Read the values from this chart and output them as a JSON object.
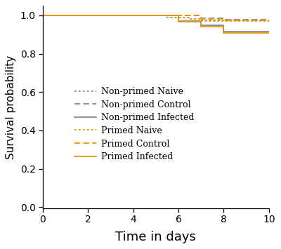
{
  "title": "",
  "xlabel": "Time in days",
  "ylabel": "Survival probability",
  "xlim": [
    0,
    10
  ],
  "ylim": [
    -0.005,
    1.05
  ],
  "xticks": [
    0,
    2,
    4,
    6,
    8,
    10
  ],
  "yticks": [
    0.0,
    0.2,
    0.4,
    0.6,
    0.8,
    1.0
  ],
  "gray_color": "#898989",
  "orange_color": "#E8960A",
  "series": [
    {
      "name": "Non-primed Naive",
      "color": "#898989",
      "linestyle": "dotted",
      "linewidth": 1.3,
      "x": [
        0,
        5.5,
        5.5,
        6.5,
        6.5,
        7.0,
        7.0,
        10
      ],
      "y": [
        1.0,
        1.0,
        0.99,
        0.99,
        0.982,
        0.982,
        0.974,
        0.974
      ]
    },
    {
      "name": "Non-primed Control",
      "color": "#898989",
      "linestyle": "dashed",
      "linewidth": 1.3,
      "x": [
        0,
        7.0,
        7.0,
        8.0,
        8.0,
        10
      ],
      "y": [
        1.0,
        1.0,
        0.986,
        0.986,
        0.978,
        0.978
      ]
    },
    {
      "name": "Non-primed Infected",
      "color": "#898989",
      "linestyle": "solid",
      "linewidth": 1.3,
      "x": [
        0,
        6.0,
        6.0,
        7.0,
        7.0,
        8.0,
        8.0,
        10
      ],
      "y": [
        1.0,
        1.0,
        0.97,
        0.97,
        0.95,
        0.95,
        0.916,
        0.916
      ]
    },
    {
      "name": "Primed Naive",
      "color": "#E8960A",
      "linestyle": "dotted",
      "linewidth": 1.3,
      "x": [
        0,
        5.5,
        5.5,
        6.5,
        6.5,
        7.0,
        7.0,
        10
      ],
      "y": [
        1.0,
        1.0,
        0.99,
        0.99,
        0.98,
        0.98,
        0.972,
        0.972
      ]
    },
    {
      "name": "Primed Control",
      "color": "#E8960A",
      "linestyle": "dashed",
      "linewidth": 1.3,
      "x": [
        0,
        7.0,
        7.0,
        8.0,
        8.0,
        10
      ],
      "y": [
        1.0,
        1.0,
        0.982,
        0.982,
        0.974,
        0.974
      ]
    },
    {
      "name": "Primed Infected",
      "color": "#E8960A",
      "linestyle": "solid",
      "linewidth": 1.3,
      "x": [
        0,
        6.0,
        6.0,
        7.0,
        7.0,
        8.0,
        8.0,
        10
      ],
      "y": [
        1.0,
        1.0,
        0.966,
        0.966,
        0.942,
        0.942,
        0.908,
        0.908
      ]
    }
  ],
  "xlabel_fontsize": 13,
  "ylabel_fontsize": 11,
  "tick_fontsize": 10,
  "legend_fontsize": 9,
  "background_color": "#ffffff"
}
